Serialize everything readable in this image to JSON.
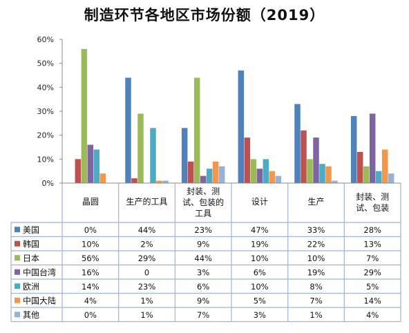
{
  "chart_data": {
    "type": "bar",
    "title": "制造环节各地区市场份额（2019）",
    "categories": [
      "晶圆",
      "生产的工具",
      "封装、测试、包装的工具",
      "设计",
      "生产",
      "封装、测试、包装"
    ],
    "category_lines": [
      [
        "晶圆"
      ],
      [
        "生产的工具"
      ],
      [
        "封装、测",
        "试、包装的",
        "工具"
      ],
      [
        "设计"
      ],
      [
        "生产"
      ],
      [
        "封装、测",
        "试、包装"
      ]
    ],
    "ylim": [
      0,
      60
    ],
    "yticks": [
      "0%",
      "10%",
      "20%",
      "30%",
      "40%",
      "50%",
      "60%"
    ],
    "grid": false,
    "legend": "table-left",
    "series": [
      {
        "name": "美国",
        "color": "#4F81BD",
        "values": [
          0,
          44,
          23,
          47,
          33,
          28
        ],
        "labels": [
          "0%",
          "44%",
          "23%",
          "47%",
          "33%",
          "28%"
        ]
      },
      {
        "name": "韩国",
        "color": "#C0504D",
        "values": [
          10,
          2,
          9,
          19,
          22,
          13
        ],
        "labels": [
          "10%",
          "2%",
          "9%",
          "19%",
          "22%",
          "13%"
        ]
      },
      {
        "name": "日本",
        "color": "#9BBB59",
        "values": [
          56,
          29,
          44,
          10,
          10,
          7
        ],
        "labels": [
          "56%",
          "29%",
          "44%",
          "10%",
          "10%",
          "7%"
        ]
      },
      {
        "name": "中国台湾",
        "color": "#8064A2",
        "values": [
          16,
          0,
          3,
          6,
          19,
          29
        ],
        "labels": [
          "16%",
          "0",
          "3%",
          "6%",
          "19%",
          "29%"
        ]
      },
      {
        "name": "欧洲",
        "color": "#4BACC6",
        "values": [
          14,
          23,
          6,
          10,
          8,
          5
        ],
        "labels": [
          "14%",
          "23%",
          "6%",
          "10%",
          "8%",
          "5%"
        ]
      },
      {
        "name": "中国大陆",
        "color": "#F79646",
        "values": [
          4,
          1,
          9,
          5,
          7,
          14
        ],
        "labels": [
          "4%",
          "1%",
          "9%",
          "5%",
          "7%",
          "14%"
        ]
      },
      {
        "name": "其他",
        "color": "#95B3D7",
        "values": [
          0,
          1,
          7,
          3,
          1,
          4
        ],
        "labels": [
          "0%",
          "1%",
          "7%",
          "3%",
          "1%",
          "4%"
        ]
      }
    ]
  }
}
